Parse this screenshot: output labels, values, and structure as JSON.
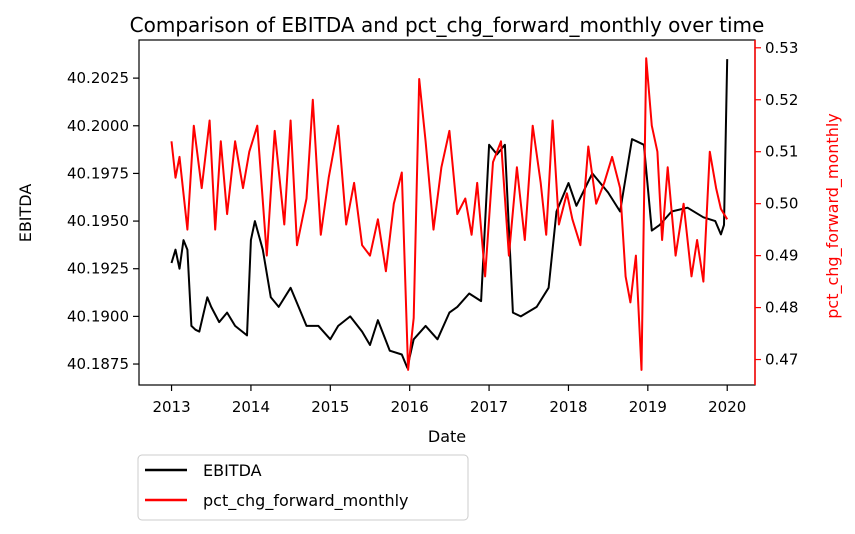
{
  "chart_data": {
    "type": "line",
    "title": "Comparison of EBITDA and pct_chg_forward_monthly over time",
    "xlabel": "Date",
    "ylabel_left": "EBITDA",
    "ylabel_right": "pct_chg_forward_monthly",
    "xlim": [
      2012.59,
      2020.35
    ],
    "ylim_left": [
      40.1864,
      40.2045
    ],
    "ylim_right": [
      0.4651,
      0.5315
    ],
    "x_ticks": [
      2013,
      2014,
      2015,
      2016,
      2017,
      2018,
      2019,
      2020
    ],
    "x_tick_labels": [
      "2013",
      "2014",
      "2015",
      "2016",
      "2017",
      "2018",
      "2019",
      "2020"
    ],
    "y_left_ticks": [
      40.1875,
      40.19,
      40.1925,
      40.195,
      40.1975,
      40.2,
      40.2025
    ],
    "y_left_tick_labels": [
      "40.1875",
      "40.1900",
      "40.1925",
      "40.1950",
      "40.1975",
      "40.2000",
      "40.2025"
    ],
    "y_right_ticks": [
      0.47,
      0.48,
      0.49,
      0.5,
      0.51,
      0.52,
      0.53
    ],
    "y_right_tick_labels": [
      "0.47",
      "0.48",
      "0.49",
      "0.50",
      "0.51",
      "0.52",
      "0.53"
    ],
    "grid": false,
    "legend_position": "below-left",
    "series": [
      {
        "name": "EBITDA",
        "axis": "left",
        "color": "#000000",
        "x": [
          2013.0,
          2013.05,
          2013.1,
          2013.15,
          2013.2,
          2013.25,
          2013.3,
          2013.35,
          2013.45,
          2013.5,
          2013.6,
          2013.7,
          2013.8,
          2013.95,
          2014.0,
          2014.05,
          2014.15,
          2014.25,
          2014.35,
          2014.5,
          2014.6,
          2014.7,
          2014.85,
          2015.0,
          2015.1,
          2015.25,
          2015.4,
          2015.5,
          2015.6,
          2015.75,
          2015.9,
          2015.97,
          2016.05,
          2016.2,
          2016.35,
          2016.5,
          2016.6,
          2016.75,
          2016.9,
          2017.0,
          2017.1,
          2017.2,
          2017.3,
          2017.4,
          2017.6,
          2017.75,
          2017.85,
          2018.0,
          2018.1,
          2018.3,
          2018.5,
          2018.65,
          2018.8,
          2018.95,
          2019.05,
          2019.15,
          2019.3,
          2019.5,
          2019.7,
          2019.85,
          2019.92,
          2019.96,
          2020.0
        ],
        "values": [
          40.1928,
          40.1935,
          40.1925,
          40.194,
          40.1935,
          40.1895,
          40.1893,
          40.1892,
          40.191,
          40.1905,
          40.1897,
          40.1902,
          40.1895,
          40.189,
          40.194,
          40.195,
          40.1935,
          40.191,
          40.1905,
          40.1915,
          40.1905,
          40.1895,
          40.1895,
          40.1888,
          40.1895,
          40.19,
          40.1892,
          40.1885,
          40.1898,
          40.1882,
          40.188,
          40.1873,
          40.1888,
          40.1895,
          40.1888,
          40.1902,
          40.1905,
          40.1912,
          40.1908,
          40.199,
          40.1985,
          40.199,
          40.1902,
          40.19,
          40.1905,
          40.1915,
          40.1955,
          40.197,
          40.1958,
          40.1975,
          40.1965,
          40.1955,
          40.1993,
          40.199,
          40.1945,
          40.1948,
          40.1955,
          40.1957,
          40.1952,
          40.195,
          40.1943,
          40.1948,
          40.2035
        ]
      },
      {
        "name": "pct_chg_forward_monthly",
        "axis": "right",
        "color": "#ff0000",
        "x": [
          2013.0,
          2013.05,
          2013.1,
          2013.2,
          2013.28,
          2013.38,
          2013.48,
          2013.55,
          2013.62,
          2013.7,
          2013.8,
          2013.9,
          2013.98,
          2014.08,
          2014.2,
          2014.3,
          2014.42,
          2014.5,
          2014.58,
          2014.7,
          2014.78,
          2014.88,
          2014.98,
          2015.1,
          2015.2,
          2015.3,
          2015.4,
          2015.5,
          2015.6,
          2015.7,
          2015.8,
          2015.9,
          2015.98,
          2016.05,
          2016.12,
          2016.2,
          2016.3,
          2016.4,
          2016.5,
          2016.6,
          2016.7,
          2016.78,
          2016.85,
          2016.95,
          2017.05,
          2017.15,
          2017.25,
          2017.35,
          2017.45,
          2017.55,
          2017.65,
          2017.72,
          2017.8,
          2017.88,
          2017.98,
          2018.05,
          2018.15,
          2018.25,
          2018.35,
          2018.45,
          2018.55,
          2018.65,
          2018.72,
          2018.78,
          2018.85,
          2018.92,
          2018.98,
          2019.05,
          2019.12,
          2019.18,
          2019.25,
          2019.35,
          2019.45,
          2019.55,
          2019.62,
          2019.7,
          2019.78,
          2019.86,
          2019.92,
          2020.0
        ],
        "values": [
          0.512,
          0.505,
          0.509,
          0.495,
          0.515,
          0.503,
          0.516,
          0.495,
          0.512,
          0.498,
          0.512,
          0.503,
          0.51,
          0.515,
          0.49,
          0.514,
          0.496,
          0.516,
          0.492,
          0.501,
          0.52,
          0.494,
          0.505,
          0.515,
          0.496,
          0.504,
          0.492,
          0.49,
          0.497,
          0.487,
          0.5,
          0.506,
          0.468,
          0.478,
          0.524,
          0.512,
          0.495,
          0.507,
          0.514,
          0.498,
          0.501,
          0.494,
          0.504,
          0.486,
          0.508,
          0.512,
          0.49,
          0.507,
          0.493,
          0.515,
          0.504,
          0.494,
          0.516,
          0.496,
          0.502,
          0.497,
          0.492,
          0.511,
          0.5,
          0.504,
          0.509,
          0.503,
          0.486,
          0.481,
          0.49,
          0.468,
          0.528,
          0.515,
          0.51,
          0.493,
          0.507,
          0.49,
          0.5,
          0.486,
          0.493,
          0.485,
          0.51,
          0.503,
          0.499,
          0.497
        ]
      }
    ]
  }
}
